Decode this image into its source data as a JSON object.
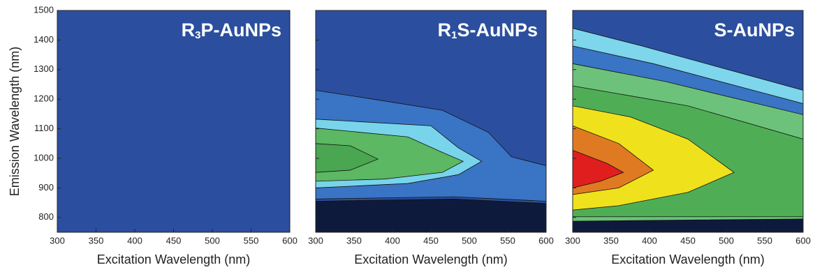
{
  "chart_data": [
    {
      "type": "contour",
      "title_parts": [
        "R",
        "3",
        "P-AuNPs"
      ],
      "xlabel": "Excitation Wavelength (nm)",
      "ylabel": "Emission Wavelength (nm)",
      "xlim": [
        300,
        600
      ],
      "xticks": [
        300,
        350,
        400,
        450,
        500,
        550,
        600
      ],
      "ylim": [
        750,
        1500
      ],
      "yticks": [
        800,
        900,
        1000,
        1100,
        1200,
        1300,
        1400,
        1500
      ]
    },
    {
      "type": "contour",
      "title_parts": [
        "R",
        "1",
        "S-AuNPs"
      ],
      "xlabel": "Excitation Wavelength (nm)",
      "xlim": [
        300,
        600
      ],
      "xticks": [
        300,
        350,
        400,
        450,
        500,
        550,
        600
      ],
      "ylim": [
        750,
        1500
      ]
    },
    {
      "type": "contour",
      "title_parts": [
        "S-AuNPs"
      ],
      "xlabel": "Excitation Wavelength (nm)",
      "xlim": [
        300,
        600
      ],
      "xticks": [
        300,
        350,
        400,
        450,
        500,
        550,
        600
      ],
      "ylim": [
        750,
        1500
      ]
    }
  ]
}
